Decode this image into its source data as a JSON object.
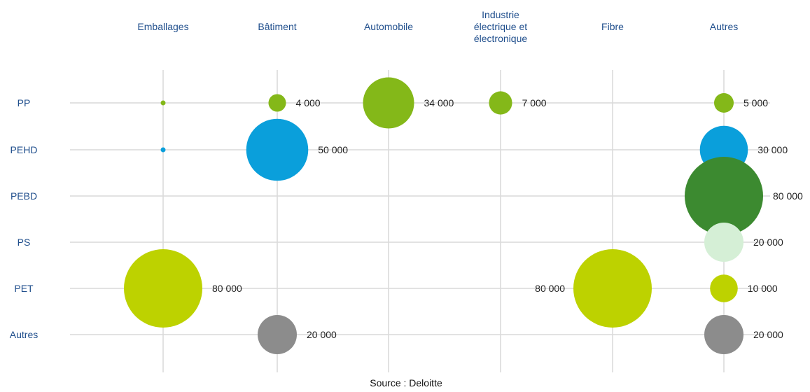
{
  "chart_data": {
    "type": "bubble",
    "columns": [
      "Emballages",
      "Bâtiment",
      "Automobile",
      "Industrie\nélectrique et\nélectronique",
      "Fibre",
      "Autres"
    ],
    "rows": [
      "PP",
      "PEHD",
      "PEBD",
      "PS",
      "PET",
      "Autres"
    ],
    "points": [
      {
        "column": "Emballages",
        "row": "PP",
        "value": 0,
        "label": "",
        "color": "#84b819"
      },
      {
        "column": "Emballages",
        "row": "PEHD",
        "value": 0,
        "label": "",
        "color": "#0a9fdb"
      },
      {
        "column": "Emballages",
        "row": "PET",
        "value": 80000,
        "label": "80 000",
        "color": "#bdd200"
      },
      {
        "column": "Bâtiment",
        "row": "PP",
        "value": 4000,
        "label": "4 000",
        "color": "#84b819"
      },
      {
        "column": "Bâtiment",
        "row": "PEHD",
        "value": 50000,
        "label": "50 000",
        "color": "#0a9fdb"
      },
      {
        "column": "Bâtiment",
        "row": "Autres",
        "value": 20000,
        "label": "20 000",
        "color": "#8c8c8c"
      },
      {
        "column": "Automobile",
        "row": "PP",
        "value": 34000,
        "label": "34 000",
        "color": "#84b819"
      },
      {
        "column": "Industrie\nélectrique et\nélectronique",
        "row": "PP",
        "value": 7000,
        "label": "7 000",
        "color": "#84b819"
      },
      {
        "column": "Fibre",
        "row": "PET",
        "value": 80000,
        "label": "80 000",
        "color": "#bdd200",
        "label_side": "left"
      },
      {
        "column": "Autres",
        "row": "PP",
        "value": 5000,
        "label": "5 000",
        "color": "#84b819"
      },
      {
        "column": "Autres",
        "row": "PEHD",
        "value": 30000,
        "label": "30 000",
        "color": "#0a9fdb"
      },
      {
        "column": "Autres",
        "row": "PEBD",
        "value": 80000,
        "label": "80 000",
        "color": "#3c8a30"
      },
      {
        "column": "Autres",
        "row": "PS",
        "value": 20000,
        "label": "20 000",
        "color": "#d5efd6"
      },
      {
        "column": "Autres",
        "row": "PET",
        "value": 10000,
        "label": "10 000",
        "color": "#bdd200"
      },
      {
        "column": "Autres",
        "row": "Autres",
        "value": 20000,
        "label": "20 000",
        "color": "#8c8c8c"
      }
    ],
    "max_value": 80000,
    "grid": true,
    "source": "Source : Deloitte"
  }
}
